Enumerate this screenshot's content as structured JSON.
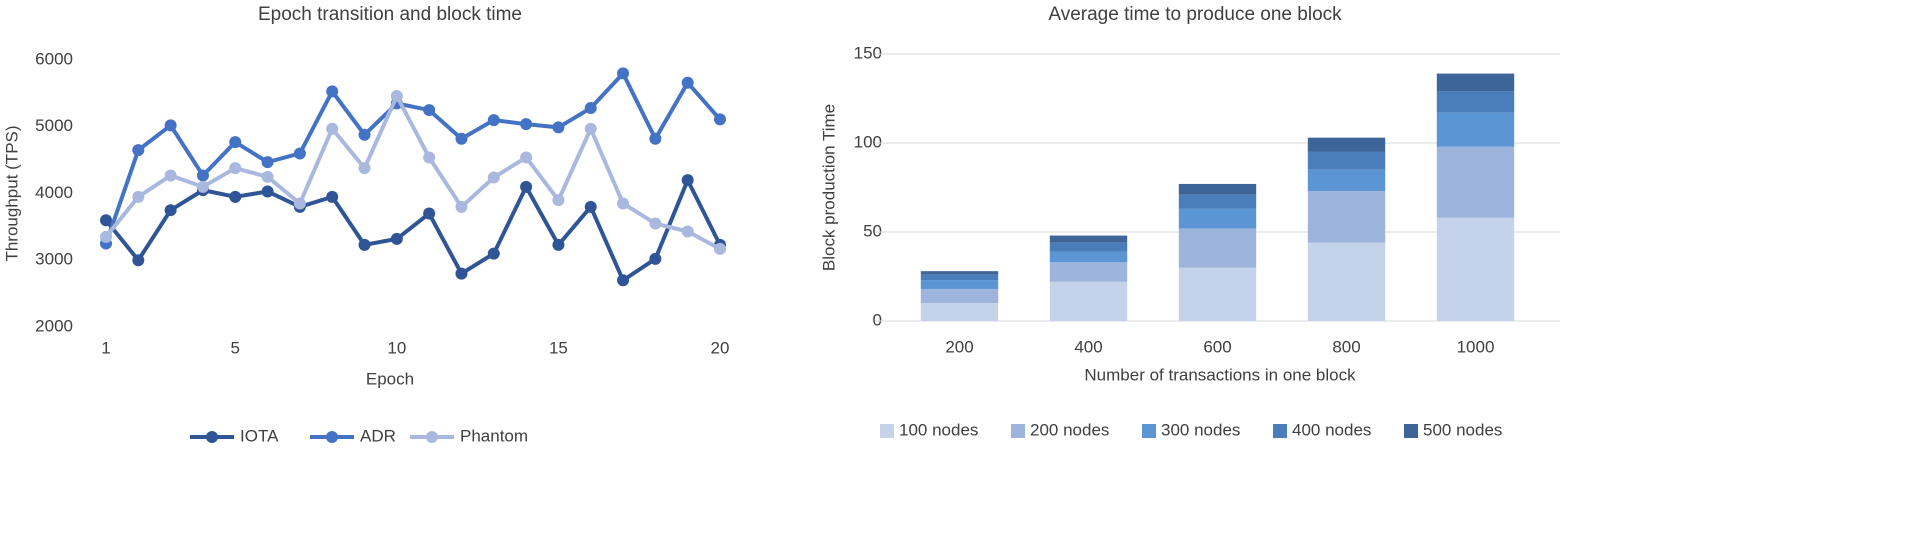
{
  "chart_data": [
    {
      "type": "line",
      "title": "Epoch transition and block time",
      "x_label": "Epoch",
      "y_label": "Throughput (TPS)",
      "x": [
        1,
        2,
        3,
        4,
        5,
        6,
        7,
        8,
        9,
        10,
        11,
        12,
        13,
        14,
        15,
        16,
        17,
        18,
        19,
        20
      ],
      "xlim": [
        1,
        20
      ],
      "xticks": [
        1,
        5,
        10,
        15,
        20
      ],
      "ylim": [
        2000,
        6000
      ],
      "yticks": [
        2000,
        3000,
        4000,
        5000,
        6000
      ],
      "grid": false,
      "legend": "bottom",
      "series": [
        {
          "name": "IOTA",
          "color": "#2f5597",
          "values": [
            3600,
            3000,
            3750,
            4050,
            3950,
            4030,
            3800,
            3950,
            3230,
            3320,
            3700,
            2800,
            3100,
            4100,
            3230,
            3800,
            2700,
            3020,
            4200,
            3230
          ]
        },
        {
          "name": "ADR",
          "color": "#4472c4",
          "values": [
            3250,
            4650,
            5020,
            4270,
            4770,
            4470,
            4600,
            5530,
            4880,
            5350,
            5250,
            4820,
            5100,
            5040,
            4990,
            5280,
            5800,
            4820,
            5660,
            5110
          ]
        },
        {
          "name": "Phantom",
          "color": "#a9b8de",
          "values": [
            3350,
            3950,
            4270,
            4100,
            4380,
            4250,
            3850,
            4970,
            4380,
            5460,
            4540,
            3800,
            4240,
            4540,
            3900,
            4970,
            3850,
            3550,
            3430,
            3170
          ]
        }
      ]
    },
    {
      "type": "bar",
      "stacked": true,
      "title": "Average time to produce one block",
      "x_label": "Number of transactions in one block",
      "y_label": "Block production Time",
      "categories": [
        "200",
        "400",
        "600",
        "800",
        "1000"
      ],
      "ylim": [
        0,
        150
      ],
      "yticks": [
        0,
        50,
        100,
        150
      ],
      "grid": true,
      "legend": "bottom",
      "series": [
        {
          "name": "100 nodes",
          "color": "#c5d3ea",
          "values": [
            10,
            22,
            30,
            44,
            58
          ]
        },
        {
          "name": "200 nodes",
          "color": "#9db4dc",
          "values": [
            8,
            11,
            22,
            29,
            40
          ]
        },
        {
          "name": "300 nodes",
          "color": "#5b95d3",
          "values": [
            5,
            6,
            11,
            12,
            19
          ]
        },
        {
          "name": "400 nodes",
          "color": "#4a7ebb",
          "values": [
            3,
            5,
            8,
            10,
            12
          ]
        },
        {
          "name": "500 nodes",
          "color": "#3d6597",
          "values": [
            2,
            4,
            6,
            8,
            10
          ]
        }
      ]
    }
  ]
}
